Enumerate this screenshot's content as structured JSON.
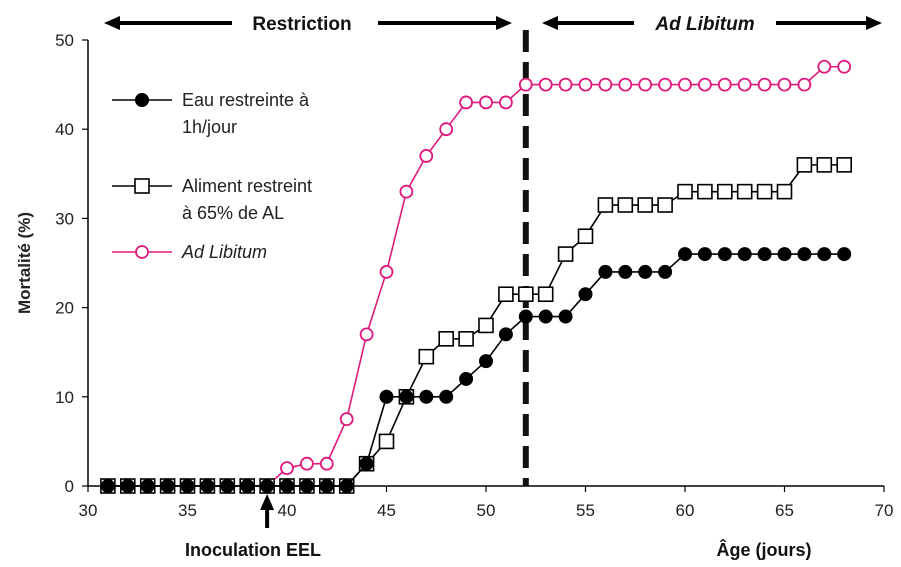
{
  "chart_data": {
    "type": "line",
    "title": "",
    "xlabel": "Âge (jours)",
    "ylabel": "Mortalité (%)",
    "xlim": [
      30,
      70
    ],
    "ylim": [
      0,
      50
    ],
    "xticks": [
      30,
      35,
      40,
      45,
      50,
      55,
      60,
      65,
      70
    ],
    "yticks": [
      0,
      10,
      20,
      30,
      40,
      50
    ],
    "grid": false,
    "legend_position": "top-left",
    "vertical_line": {
      "x": 52,
      "style": "dashed"
    },
    "phases": [
      {
        "label": "Restriction",
        "x_start": 30,
        "x_end": 52,
        "italic": false
      },
      {
        "label": "Ad Libitum",
        "x_start": 52,
        "x_end": 70,
        "italic": true
      }
    ],
    "annotation": {
      "label": "Inoculation EEL",
      "x": 39
    },
    "series": [
      {
        "name_lines": [
          "Eau restreinte à",
          "1h/jour"
        ],
        "marker": "filled-circle",
        "color": "#000000",
        "x": [
          31,
          32,
          33,
          34,
          35,
          36,
          37,
          38,
          39,
          40,
          41,
          42,
          43,
          44,
          45,
          46,
          47,
          48,
          49,
          50,
          51,
          52,
          53,
          54,
          55,
          56,
          57,
          58,
          59,
          60,
          61,
          62,
          63,
          64,
          65,
          66,
          67,
          68
        ],
        "y": [
          0,
          0,
          0,
          0,
          0,
          0,
          0,
          0,
          0,
          0,
          0,
          0,
          0,
          2.5,
          10,
          10,
          10,
          10,
          12,
          14,
          17,
          19,
          19,
          19,
          21.5,
          24,
          24,
          24,
          24,
          26,
          26,
          26,
          26,
          26,
          26,
          26,
          26,
          26
        ]
      },
      {
        "name_lines": [
          "Aliment restreint",
          "à 65% de AL"
        ],
        "marker": "open-square",
        "color": "#000000",
        "x": [
          31,
          32,
          33,
          34,
          35,
          36,
          37,
          38,
          39,
          40,
          41,
          42,
          43,
          44,
          45,
          46,
          47,
          48,
          49,
          50,
          51,
          52,
          53,
          54,
          55,
          56,
          57,
          58,
          59,
          60,
          61,
          62,
          63,
          64,
          65,
          66,
          67,
          68
        ],
        "y": [
          0,
          0,
          0,
          0,
          0,
          0,
          0,
          0,
          0,
          0,
          0,
          0,
          0,
          2.5,
          5,
          10,
          14.5,
          16.5,
          16.5,
          18,
          21.5,
          21.5,
          21.5,
          26,
          28,
          31.5,
          31.5,
          31.5,
          31.5,
          33,
          33,
          33,
          33,
          33,
          33,
          36,
          36,
          36
        ]
      },
      {
        "name_lines": [
          "Ad Libitum"
        ],
        "italic": true,
        "marker": "open-circle",
        "color": "#e0197d",
        "x": [
          31,
          32,
          33,
          34,
          35,
          36,
          37,
          38,
          39,
          40,
          41,
          42,
          43,
          44,
          45,
          46,
          47,
          48,
          49,
          50,
          51,
          52,
          53,
          54,
          55,
          56,
          57,
          58,
          59,
          60,
          61,
          62,
          63,
          64,
          65,
          66,
          67,
          68
        ],
        "y": [
          0,
          0,
          0,
          0,
          0,
          0,
          0,
          0,
          0,
          2,
          2.5,
          2.5,
          7.5,
          17,
          24,
          33,
          37,
          40,
          43,
          43,
          43,
          45,
          45,
          45,
          45,
          45,
          45,
          45,
          45,
          45,
          45,
          45,
          45,
          45,
          45,
          45,
          47,
          47
        ]
      }
    ]
  }
}
